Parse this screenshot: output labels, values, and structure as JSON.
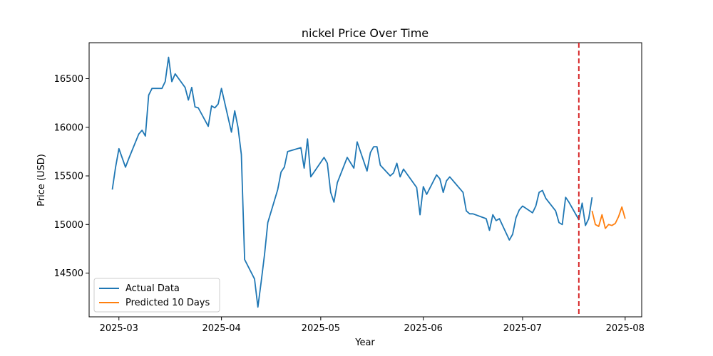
{
  "chart_data": {
    "type": "line",
    "title": "nickel Price Over Time",
    "xlabel": "Year",
    "ylabel": "Price (USD)",
    "x_ticks": [
      "2025-03",
      "2025-04",
      "2025-05",
      "2025-06",
      "2025-07",
      "2025-08"
    ],
    "y_ticks": [
      "14500",
      "15000",
      "15500",
      "16000",
      "16500"
    ],
    "xlim": [
      "2025-02-20",
      "2025-08-06"
    ],
    "ylim": [
      14050,
      16870
    ],
    "grid": false,
    "legend_position": "lower-left",
    "cutoff": {
      "x": "2025-07-18",
      "style": "dashed",
      "color": "#d62728"
    },
    "series": [
      {
        "name": "Actual Data",
        "color": "#1f77b4",
        "points": [
          [
            "2025-02-27",
            15360
          ],
          [
            "2025-02-28",
            15590
          ],
          [
            "2025-03-01",
            15780
          ],
          [
            "2025-03-03",
            15590
          ],
          [
            "2025-03-04",
            15680
          ],
          [
            "2025-03-07",
            15930
          ],
          [
            "2025-03-08",
            15970
          ],
          [
            "2025-03-09",
            15910
          ],
          [
            "2025-03-10",
            16330
          ],
          [
            "2025-03-11",
            16400
          ],
          [
            "2025-03-14",
            16400
          ],
          [
            "2025-03-15",
            16470
          ],
          [
            "2025-03-16",
            16720
          ],
          [
            "2025-03-17",
            16470
          ],
          [
            "2025-03-18",
            16550
          ],
          [
            "2025-03-21",
            16410
          ],
          [
            "2025-03-22",
            16280
          ],
          [
            "2025-03-23",
            16410
          ],
          [
            "2025-03-24",
            16210
          ],
          [
            "2025-03-25",
            16200
          ],
          [
            "2025-03-28",
            16010
          ],
          [
            "2025-03-29",
            16220
          ],
          [
            "2025-03-30",
            16200
          ],
          [
            "2025-03-31",
            16240
          ],
          [
            "2025-04-01",
            16400
          ],
          [
            "2025-04-04",
            15950
          ],
          [
            "2025-04-05",
            16170
          ],
          [
            "2025-04-06",
            16000
          ],
          [
            "2025-04-07",
            15720
          ],
          [
            "2025-04-08",
            14640
          ],
          [
            "2025-04-11",
            14440
          ],
          [
            "2025-04-12",
            14150
          ],
          [
            "2025-04-13",
            14410
          ],
          [
            "2025-04-14",
            14690
          ],
          [
            "2025-04-15",
            15020
          ],
          [
            "2025-04-18",
            15360
          ],
          [
            "2025-04-19",
            15540
          ],
          [
            "2025-04-20",
            15590
          ],
          [
            "2025-04-21",
            15750
          ],
          [
            "2025-04-25",
            15790
          ],
          [
            "2025-04-26",
            15580
          ],
          [
            "2025-04-27",
            15880
          ],
          [
            "2025-04-28",
            15490
          ],
          [
            "2025-05-02",
            15690
          ],
          [
            "2025-05-03",
            15630
          ],
          [
            "2025-05-04",
            15330
          ],
          [
            "2025-05-05",
            15230
          ],
          [
            "2025-05-06",
            15430
          ],
          [
            "2025-05-09",
            15690
          ],
          [
            "2025-05-11",
            15580
          ],
          [
            "2025-05-12",
            15850
          ],
          [
            "2025-05-15",
            15550
          ],
          [
            "2025-05-16",
            15740
          ],
          [
            "2025-05-17",
            15800
          ],
          [
            "2025-05-18",
            15800
          ],
          [
            "2025-05-19",
            15610
          ],
          [
            "2025-05-22",
            15500
          ],
          [
            "2025-05-23",
            15530
          ],
          [
            "2025-05-24",
            15630
          ],
          [
            "2025-05-25",
            15490
          ],
          [
            "2025-05-26",
            15570
          ],
          [
            "2025-05-30",
            15380
          ],
          [
            "2025-05-31",
            15100
          ],
          [
            "2025-06-01",
            15390
          ],
          [
            "2025-06-02",
            15310
          ],
          [
            "2025-06-05",
            15510
          ],
          [
            "2025-06-06",
            15470
          ],
          [
            "2025-06-07",
            15330
          ],
          [
            "2025-06-08",
            15450
          ],
          [
            "2025-06-09",
            15490
          ],
          [
            "2025-06-13",
            15330
          ],
          [
            "2025-06-14",
            15140
          ],
          [
            "2025-06-15",
            15110
          ],
          [
            "2025-06-16",
            15110
          ],
          [
            "2025-06-20",
            15060
          ],
          [
            "2025-06-21",
            14940
          ],
          [
            "2025-06-22",
            15100
          ],
          [
            "2025-06-23",
            15040
          ],
          [
            "2025-06-24",
            15060
          ],
          [
            "2025-06-27",
            14840
          ],
          [
            "2025-06-28",
            14900
          ],
          [
            "2025-06-29",
            15070
          ],
          [
            "2025-06-30",
            15150
          ],
          [
            "2025-07-01",
            15190
          ],
          [
            "2025-07-04",
            15120
          ],
          [
            "2025-07-05",
            15190
          ],
          [
            "2025-07-06",
            15330
          ],
          [
            "2025-07-07",
            15350
          ],
          [
            "2025-07-08",
            15270
          ],
          [
            "2025-07-11",
            15140
          ],
          [
            "2025-07-12",
            15020
          ],
          [
            "2025-07-13",
            15000
          ],
          [
            "2025-07-14",
            15280
          ],
          [
            "2025-07-15",
            15230
          ],
          [
            "2025-07-18",
            15050
          ],
          [
            "2025-07-19",
            15220
          ],
          [
            "2025-07-20",
            14990
          ],
          [
            "2025-07-21",
            15060
          ],
          [
            "2025-07-22",
            15280
          ]
        ]
      },
      {
        "name": "Predicted 10 Days",
        "color": "#ff7f0e",
        "points": [
          [
            "2025-07-22",
            15140
          ],
          [
            "2025-07-23",
            15000
          ],
          [
            "2025-07-24",
            14980
          ],
          [
            "2025-07-25",
            15100
          ],
          [
            "2025-07-26",
            14960
          ],
          [
            "2025-07-27",
            15000
          ],
          [
            "2025-07-28",
            14990
          ],
          [
            "2025-07-29",
            15010
          ],
          [
            "2025-07-30",
            15080
          ],
          [
            "2025-07-31",
            15180
          ],
          [
            "2025-08-01",
            15060
          ]
        ]
      }
    ]
  }
}
